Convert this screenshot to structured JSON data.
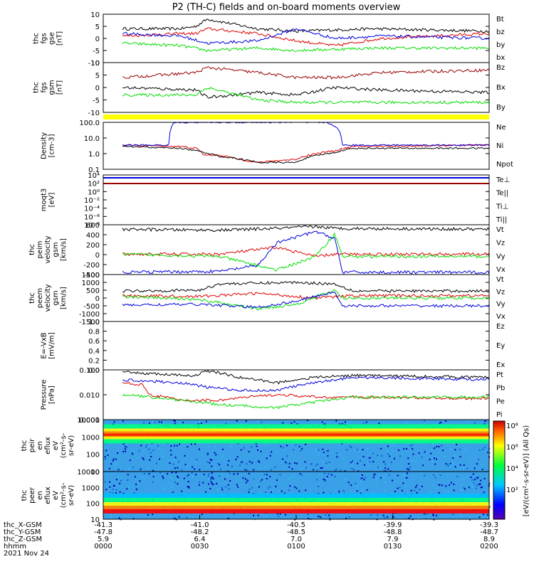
{
  "title": "P2 (TH-C) fields and on-board moments overview",
  "colors": {
    "black": "#000000",
    "red": "#dd0000",
    "green": "#00dd00",
    "blue": "#0000dd",
    "darkred": "#990000",
    "yellow": "#ffff00"
  },
  "chart_data": [
    {
      "id": "fgs_gse",
      "type": "line",
      "ylabel": [
        "thc",
        "fgs",
        "gse",
        "[nT]"
      ],
      "ylim": [
        -10,
        10
      ],
      "yticks": [
        10,
        5,
        0,
        -5,
        -10
      ],
      "series": [
        {
          "name": "Bt",
          "color": "#000000",
          "approx": [
            [
              0.05,
              4
            ],
            [
              0.2,
              4
            ],
            [
              0.24,
              5
            ],
            [
              0.27,
              8
            ],
            [
              0.4,
              4
            ],
            [
              0.5,
              3
            ],
            [
              0.7,
              4
            ],
            [
              1,
              3
            ]
          ]
        },
        {
          "name": "bz",
          "color": "#dd0000",
          "approx": [
            [
              0.05,
              1
            ],
            [
              0.2,
              2
            ],
            [
              0.24,
              2
            ],
            [
              0.27,
              4
            ],
            [
              0.4,
              2
            ],
            [
              0.5,
              -1
            ],
            [
              0.6,
              -3
            ],
            [
              0.72,
              0
            ],
            [
              1,
              2
            ]
          ]
        },
        {
          "name": "by",
          "color": "#00dd00",
          "approx": [
            [
              0.05,
              -2
            ],
            [
              0.2,
              -3
            ],
            [
              0.27,
              -5
            ],
            [
              0.4,
              -4
            ],
            [
              0.5,
              -5
            ],
            [
              0.7,
              -4
            ],
            [
              1,
              -4
            ]
          ]
        },
        {
          "name": "bx",
          "color": "#0000dd",
          "approx": [
            [
              0.05,
              2
            ],
            [
              0.2,
              1
            ],
            [
              0.27,
              -2
            ],
            [
              0.4,
              -1
            ],
            [
              0.5,
              4
            ],
            [
              0.6,
              0
            ],
            [
              0.72,
              1
            ],
            [
              1,
              0
            ]
          ]
        }
      ]
    },
    {
      "id": "fgs_gsm",
      "type": "line",
      "ylabel": [
        "thc",
        "fgs",
        "gsm",
        "[nT]"
      ],
      "ylim": [
        -10,
        10
      ],
      "yticks": [
        10,
        5,
        0,
        -5,
        -10
      ],
      "series": [
        {
          "name": "Bz",
          "color": "#990000",
          "approx": [
            [
              0.05,
              4
            ],
            [
              0.24,
              6
            ],
            [
              0.27,
              8
            ],
            [
              0.4,
              6
            ],
            [
              0.5,
              4
            ],
            [
              0.6,
              4
            ],
            [
              0.72,
              6
            ],
            [
              1,
              7
            ]
          ]
        },
        {
          "name": "Bx",
          "color": "#000000",
          "approx": [
            [
              0.05,
              0
            ],
            [
              0.24,
              -1
            ],
            [
              0.27,
              -4
            ],
            [
              0.4,
              -2
            ],
            [
              0.5,
              -3
            ],
            [
              0.6,
              0
            ],
            [
              0.72,
              -1
            ],
            [
              1,
              -2
            ]
          ]
        },
        {
          "name": "By",
          "color": "#00dd00",
          "approx": [
            [
              0.05,
              -3
            ],
            [
              0.24,
              -3
            ],
            [
              0.27,
              0
            ],
            [
              0.4,
              -5
            ],
            [
              0.5,
              -6
            ],
            [
              0.72,
              -6
            ],
            [
              1,
              -6
            ]
          ]
        }
      ]
    },
    {
      "id": "density",
      "type": "line",
      "scale": "log",
      "ylabel": [
        "Density",
        "[cm-3]"
      ],
      "ylim": [
        0.1,
        200
      ],
      "yticks": [
        "100.0",
        "10.0",
        "1.0",
        "0.1"
      ],
      "series": [
        {
          "name": "Ne",
          "color": "#dd0000",
          "approx": [
            [
              0.05,
              5
            ],
            [
              0.2,
              4
            ],
            [
              0.24,
              3
            ],
            [
              0.26,
              1
            ],
            [
              0.3,
              1
            ],
            [
              0.35,
              0.5
            ],
            [
              0.4,
              0.3
            ],
            [
              0.5,
              0.5
            ],
            [
              0.6,
              2
            ],
            [
              0.65,
              4
            ],
            [
              1,
              5
            ]
          ]
        },
        {
          "name": "Ni",
          "color": "#000000",
          "approx": [
            [
              0.05,
              4
            ],
            [
              0.2,
              3
            ],
            [
              0.24,
              2
            ],
            [
              0.3,
              0.8
            ],
            [
              0.4,
              0.3
            ],
            [
              0.5,
              0.3
            ],
            [
              0.6,
              1.5
            ],
            [
              0.65,
              3
            ],
            [
              1,
              3
            ]
          ]
        },
        {
          "name": "Npot",
          "color": "#0000dd",
          "approx": [
            [
              0.05,
              5
            ],
            [
              0.17,
              5
            ],
            [
              0.185,
              200
            ],
            [
              0.58,
              200
            ],
            [
              0.62,
              5
            ],
            [
              1,
              5
            ]
          ]
        }
      ]
    },
    {
      "id": "moqt3",
      "type": "line",
      "scale": "log",
      "ylabel": [
        "moqt3",
        "[eV]"
      ],
      "yticks": [
        "10⁴",
        "10²",
        "10⁰",
        "10⁻²",
        "10⁻⁴",
        "10⁻⁶",
        "10⁻⁸"
      ],
      "series": [
        {
          "name": "Te⊥",
          "color": "#dd0000"
        },
        {
          "name": "Te||",
          "color": "#000000"
        },
        {
          "name": "Ti⊥",
          "color": "#0000dd"
        },
        {
          "name": "Ti||",
          "color": "#00dd00"
        }
      ]
    },
    {
      "id": "peim",
      "type": "line",
      "ylabel": [
        "thc",
        "peim",
        "velocity",
        "gsm",
        "[km/s]"
      ],
      "ylim": [
        -500,
        600
      ],
      "yticks": [
        "600",
        "400",
        "200",
        "0",
        "-200",
        "-400"
      ],
      "series": [
        {
          "name": "Vt",
          "color": "#000000",
          "approx": [
            [
              0.05,
              500
            ],
            [
              0.3,
              480
            ],
            [
              0.45,
              520
            ],
            [
              0.55,
              560
            ],
            [
              0.6,
              520
            ],
            [
              1,
              500
            ]
          ]
        },
        {
          "name": "Vz",
          "color": "#dd0000",
          "approx": [
            [
              0.05,
              -50
            ],
            [
              0.3,
              -50
            ],
            [
              0.45,
              100
            ],
            [
              0.55,
              -100
            ],
            [
              0.6,
              -50
            ],
            [
              1,
              -50
            ]
          ]
        },
        {
          "name": "Vy",
          "color": "#00dd00",
          "approx": [
            [
              0.05,
              -50
            ],
            [
              0.3,
              -100
            ],
            [
              0.4,
              -300
            ],
            [
              0.45,
              -400
            ],
            [
              0.55,
              -100
            ],
            [
              0.6,
              400
            ],
            [
              0.62,
              -100
            ],
            [
              1,
              -100
            ]
          ]
        },
        {
          "name": "Vx",
          "color": "#0000dd",
          "approx": [
            [
              0.05,
              -450
            ],
            [
              0.3,
              -430
            ],
            [
              0.4,
              -300
            ],
            [
              0.45,
              200
            ],
            [
              0.55,
              450
            ],
            [
              0.6,
              300
            ],
            [
              0.62,
              -450
            ],
            [
              1,
              -450
            ]
          ]
        }
      ]
    },
    {
      "id": "peem",
      "type": "line",
      "ylabel": [
        "thc",
        "peem",
        "velocity",
        "gsm",
        "[km/s]"
      ],
      "ylim": [
        -1500,
        1500
      ],
      "yticks": [
        "1500",
        "1000",
        "500",
        "0",
        "-500",
        "-1000",
        "-1500"
      ],
      "series": [
        {
          "name": "Vt",
          "color": "#000000",
          "approx": [
            [
              0.05,
              450
            ],
            [
              0.25,
              500
            ],
            [
              0.3,
              900
            ],
            [
              0.5,
              1000
            ],
            [
              0.6,
              900
            ],
            [
              0.65,
              450
            ],
            [
              1,
              450
            ]
          ]
        },
        {
          "name": "Vz",
          "color": "#dd0000",
          "approx": [
            [
              0.05,
              150
            ],
            [
              0.25,
              100
            ],
            [
              0.4,
              300
            ],
            [
              0.55,
              0
            ],
            [
              0.65,
              150
            ],
            [
              1,
              150
            ]
          ]
        },
        {
          "name": "Vy",
          "color": "#00dd00",
          "approx": [
            [
              0.05,
              100
            ],
            [
              0.25,
              -100
            ],
            [
              0.4,
              -700
            ],
            [
              0.5,
              -400
            ],
            [
              0.6,
              500
            ],
            [
              0.62,
              0
            ],
            [
              1,
              0
            ]
          ]
        },
        {
          "name": "Vx",
          "color": "#0000dd",
          "approx": [
            [
              0.05,
              -450
            ],
            [
              0.25,
              -400
            ],
            [
              0.4,
              -600
            ],
            [
              0.5,
              -200
            ],
            [
              0.6,
              400
            ],
            [
              0.62,
              -500
            ],
            [
              1,
              -500
            ]
          ]
        }
      ]
    },
    {
      "id": "efield",
      "type": "line",
      "ylabel": [
        "E=-VxB",
        "[mV/m]"
      ],
      "ylim": [
        0,
        1
      ],
      "yticks": [
        "1.0",
        "0.8",
        "0.6",
        "0.4",
        "0.2",
        "0.0"
      ],
      "series": [
        {
          "name": "Ez",
          "color": "#dd0000"
        },
        {
          "name": "Ey",
          "color": "#00dd00"
        },
        {
          "name": "Ex",
          "color": "#0000dd"
        }
      ]
    },
    {
      "id": "pressure",
      "type": "line",
      "scale": "log",
      "ylabel": [
        "Pressure",
        "[nPa]"
      ],
      "ylim": [
        0.001,
        0.1
      ],
      "yticks": [
        "0.100",
        "0.010",
        "0.001"
      ],
      "series": [
        {
          "name": "Pt",
          "color": "#000000",
          "approx": [
            [
              0.05,
              0.08
            ],
            [
              0.2,
              0.06
            ],
            [
              0.24,
              0.06
            ],
            [
              0.27,
              0.09
            ],
            [
              0.35,
              0.05
            ],
            [
              0.45,
              0.03
            ],
            [
              0.55,
              0.05
            ],
            [
              0.65,
              0.06
            ],
            [
              1,
              0.05
            ]
          ]
        },
        {
          "name": "Pb",
          "color": "#dd0000",
          "approx": [
            [
              0.05,
              0.03
            ],
            [
              0.1,
              0.025
            ],
            [
              0.12,
              0.01
            ],
            [
              0.2,
              0.006
            ],
            [
              0.3,
              0.006
            ],
            [
              0.45,
              0.01
            ],
            [
              0.55,
              0.008
            ],
            [
              0.65,
              0.008
            ],
            [
              1,
              0.007
            ]
          ]
        },
        {
          "name": "Pe",
          "color": "#00dd00",
          "approx": [
            [
              0.05,
              0.01
            ],
            [
              0.2,
              0.006
            ],
            [
              0.3,
              0.004
            ],
            [
              0.45,
              0.003
            ],
            [
              0.55,
              0.005
            ],
            [
              0.65,
              0.008
            ],
            [
              1,
              0.008
            ]
          ]
        },
        {
          "name": "Pi",
          "color": "#0000dd",
          "approx": [
            [
              0.05,
              0.04
            ],
            [
              0.2,
              0.03
            ],
            [
              0.27,
              0.02
            ],
            [
              0.35,
              0.015
            ],
            [
              0.45,
              0.015
            ],
            [
              0.55,
              0.03
            ],
            [
              0.65,
              0.05
            ],
            [
              1,
              0.04
            ]
          ]
        }
      ]
    },
    {
      "id": "peir",
      "type": "heatmap",
      "scale": "log",
      "ylabel": [
        "thc",
        "peir",
        "en",
        "eflux",
        "eV",
        "(cm²-s-",
        "sr-eV)"
      ],
      "yticks": [
        "10000",
        "1000",
        "100",
        "10"
      ],
      "band_energy_eV": 1000
    },
    {
      "id": "peer",
      "type": "heatmap",
      "scale": "log",
      "ylabel": [
        "thc",
        "peer",
        "en",
        "eflux",
        "eV",
        "(cm²-s-",
        "sr-eV)"
      ],
      "yticks": [
        "10000",
        "1000",
        "100",
        "10"
      ],
      "band_energy_eV": 10
    }
  ],
  "colorbar": {
    "labels": [
      "10⁸",
      "10⁶",
      "10⁴",
      "10²"
    ],
    "title": "[eV/(cm²-s-sr-eV)] (All Qs)"
  },
  "xaxis": {
    "rows": [
      {
        "label": "thc_X-GSM",
        "values": [
          "-41.3",
          "-41.0",
          "-40.5",
          "-39.9",
          "-39.3"
        ]
      },
      {
        "label": "thc_Y-GSM",
        "values": [
          "-47.8",
          "-48.2",
          "-48.5",
          "-48.8",
          "-48.7"
        ]
      },
      {
        "label": "thc_Z-GSM",
        "values": [
          "5.9",
          "6.4",
          "7.0",
          "7.9",
          "8.9"
        ]
      },
      {
        "label": "hhmm",
        "values": [
          "0000",
          "0030",
          "0100",
          "0130",
          "0200"
        ]
      }
    ],
    "date": "2021 Nov 24"
  }
}
